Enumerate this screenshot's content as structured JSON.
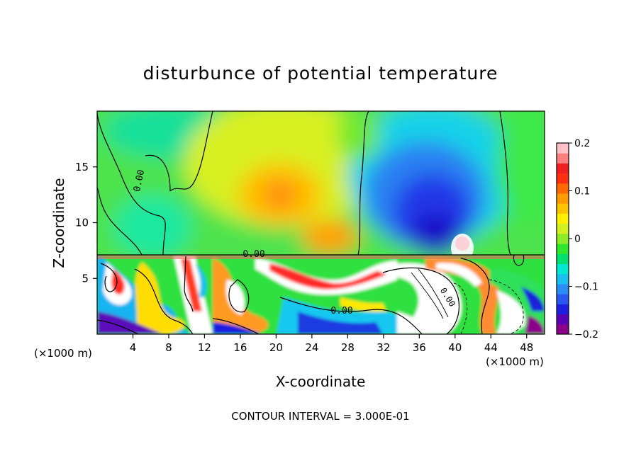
{
  "chart_data": {
    "type": "heatmap",
    "title": "disturbunce of potential temperature",
    "xlabel": "X-coordinate",
    "ylabel": "Z-coordinate",
    "x_unit": "(×1000 m)",
    "xlim": [
      0,
      50
    ],
    "ylim": [
      0,
      20
    ],
    "x_ticks": [
      4,
      8,
      12,
      16,
      20,
      24,
      28,
      32,
      36,
      40,
      44,
      48
    ],
    "y_ticks": [
      5,
      10,
      15
    ],
    "colorbar": {
      "range": [
        -0.2,
        0.2
      ],
      "tick_labels": [
        "0.2",
        "0.1",
        "0",
        "−0.1",
        "−0.2"
      ],
      "tick_values": [
        0.2,
        0.1,
        0,
        -0.1,
        -0.2
      ],
      "colors": [
        "#8b008b",
        "#5a00b5",
        "#1e1ee0",
        "#2858f0",
        "#2a8cf5",
        "#18c0f0",
        "#00e8d0",
        "#00e06e",
        "#2ee82e",
        "#8cec2a",
        "#d2f020",
        "#fff000",
        "#ffc400",
        "#ff9a00",
        "#ff6a00",
        "#ff3010",
        "#f01f20",
        "#ff7f7f",
        "#ffc0c8"
      ]
    },
    "contour_labels": [
      "0.00",
      "0.00",
      "0.00",
      "0.00"
    ],
    "footer": "CONTOUR INTERVAL = 3.000E-01"
  }
}
